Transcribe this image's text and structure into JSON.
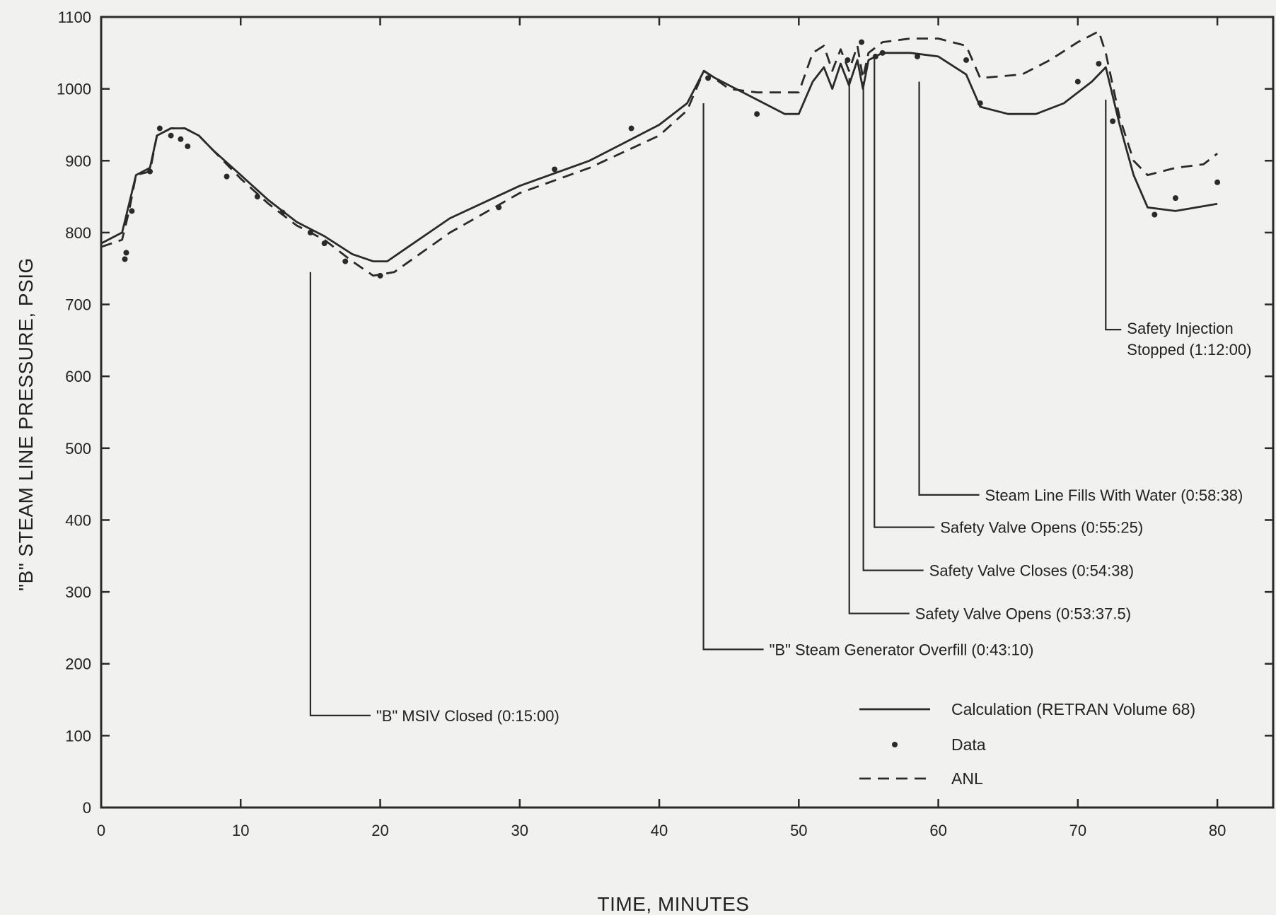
{
  "chart_data": {
    "type": "line",
    "title": "",
    "xlabel": "TIME, MINUTES",
    "ylabel": "\"B\" STEAM LINE PRESSURE, PSIG",
    "xlim": [
      0,
      84
    ],
    "ylim": [
      0,
      1100
    ],
    "xticks": [
      0,
      10,
      20,
      30,
      40,
      50,
      60,
      70,
      80
    ],
    "yticks": [
      0,
      100,
      200,
      300,
      400,
      500,
      600,
      700,
      800,
      900,
      1000,
      1100
    ],
    "grid": false,
    "legend": "bottom-right",
    "series": [
      {
        "name": "Calculation (RETRAN Volume 68)",
        "style": "solid",
        "points": [
          [
            0,
            785
          ],
          [
            1.5,
            800
          ],
          [
            2,
            840
          ],
          [
            2.5,
            880
          ],
          [
            3.5,
            890
          ],
          [
            4,
            935
          ],
          [
            5,
            945
          ],
          [
            6,
            945
          ],
          [
            7,
            935
          ],
          [
            8,
            915
          ],
          [
            10,
            880
          ],
          [
            12,
            845
          ],
          [
            14,
            815
          ],
          [
            16,
            795
          ],
          [
            18,
            770
          ],
          [
            19.5,
            760
          ],
          [
            20.5,
            760
          ],
          [
            22,
            780
          ],
          [
            25,
            820
          ],
          [
            30,
            865
          ],
          [
            35,
            900
          ],
          [
            40,
            950
          ],
          [
            42,
            980
          ],
          [
            43.2,
            1025
          ],
          [
            44,
            1015
          ],
          [
            45,
            1005
          ],
          [
            47,
            985
          ],
          [
            49,
            965
          ],
          [
            50,
            965
          ],
          [
            51,
            1010
          ],
          [
            51.8,
            1030
          ],
          [
            52.4,
            1000
          ],
          [
            53,
            1035
          ],
          [
            53.6,
            1005
          ],
          [
            54.2,
            1040
          ],
          [
            54.6,
            1000
          ],
          [
            55,
            1040
          ],
          [
            56,
            1050
          ],
          [
            58,
            1050
          ],
          [
            60,
            1045
          ],
          [
            62,
            1020
          ],
          [
            63,
            975
          ],
          [
            65,
            965
          ],
          [
            67,
            965
          ],
          [
            69,
            980
          ],
          [
            71,
            1010
          ],
          [
            72,
            1030
          ],
          [
            73,
            950
          ],
          [
            74,
            880
          ],
          [
            75,
            835
          ],
          [
            77,
            830
          ],
          [
            80,
            840
          ]
        ]
      },
      {
        "name": "ANL",
        "style": "dashed",
        "points": [
          [
            0,
            780
          ],
          [
            1.5,
            790
          ],
          [
            2,
            830
          ],
          [
            2.5,
            880
          ],
          [
            3.5,
            885
          ],
          [
            4,
            935
          ],
          [
            5,
            945
          ],
          [
            6,
            945
          ],
          [
            7,
            935
          ],
          [
            8,
            915
          ],
          [
            10,
            875
          ],
          [
            12,
            840
          ],
          [
            14,
            810
          ],
          [
            16,
            790
          ],
          [
            18,
            760
          ],
          [
            19.5,
            740
          ],
          [
            21,
            745
          ],
          [
            25,
            800
          ],
          [
            30,
            855
          ],
          [
            35,
            890
          ],
          [
            40,
            935
          ],
          [
            42,
            970
          ],
          [
            43.2,
            1025
          ],
          [
            45,
            1000
          ],
          [
            47,
            995
          ],
          [
            50,
            995
          ],
          [
            51,
            1050
          ],
          [
            51.8,
            1060
          ],
          [
            52.4,
            1025
          ],
          [
            53,
            1055
          ],
          [
            53.6,
            1025
          ],
          [
            54.2,
            1060
          ],
          [
            54.6,
            1015
          ],
          [
            55,
            1050
          ],
          [
            56,
            1065
          ],
          [
            58,
            1070
          ],
          [
            60,
            1070
          ],
          [
            62,
            1060
          ],
          [
            63,
            1015
          ],
          [
            66,
            1020
          ],
          [
            68,
            1040
          ],
          [
            70,
            1065
          ],
          [
            71.5,
            1080
          ],
          [
            72,
            1050
          ],
          [
            73,
            960
          ],
          [
            74,
            900
          ],
          [
            75,
            880
          ],
          [
            77,
            890
          ],
          [
            79,
            895
          ],
          [
            80,
            910
          ]
        ]
      },
      {
        "name": "Data",
        "style": "points",
        "points": [
          [
            1.7,
            763
          ],
          [
            1.8,
            772
          ],
          [
            2.2,
            830
          ],
          [
            3.5,
            885
          ],
          [
            4.2,
            945
          ],
          [
            5,
            935
          ],
          [
            5.7,
            930
          ],
          [
            6.2,
            920
          ],
          [
            9,
            878
          ],
          [
            11.2,
            850
          ],
          [
            13,
            828
          ],
          [
            15,
            800
          ],
          [
            16,
            785
          ],
          [
            17.5,
            760
          ],
          [
            20,
            740
          ],
          [
            28.5,
            835
          ],
          [
            32.5,
            888
          ],
          [
            38,
            945
          ],
          [
            43.5,
            1015
          ],
          [
            47,
            965
          ],
          [
            53.5,
            1040
          ],
          [
            54.5,
            1065
          ],
          [
            55.5,
            1045
          ],
          [
            56,
            1050
          ],
          [
            58.5,
            1045
          ],
          [
            62,
            1040
          ],
          [
            63,
            980
          ],
          [
            70,
            1010
          ],
          [
            71.5,
            1035
          ],
          [
            72.5,
            955
          ],
          [
            75.5,
            825
          ],
          [
            77,
            848
          ],
          [
            80,
            870
          ]
        ]
      }
    ],
    "annotations": [
      {
        "text": "\"B\" MSIV Closed (0:15:00)",
        "x": 15,
        "y_top": 745,
        "y_bottom": 128
      },
      {
        "text": "\"B\" Steam Generator Overfill (0:43:10)",
        "x": 43.17,
        "y_top": 980,
        "y_bottom": 220
      },
      {
        "text": "Safety Valve Opens (0:53:37.5)",
        "x": 53.62,
        "y_top": 1015,
        "y_bottom": 270
      },
      {
        "text": "Safety Valve Closes (0:54:38)",
        "x": 54.63,
        "y_top": 1010,
        "y_bottom": 330
      },
      {
        "text": "Safety Valve Opens (0:55:25)",
        "x": 55.42,
        "y_top": 1045,
        "y_bottom": 390
      },
      {
        "text": "Steam Line Fills With Water (0:58:38)",
        "x": 58.63,
        "y_top": 1010,
        "y_bottom": 435
      },
      {
        "text": "Safety Injection\nStopped (1:12:00)",
        "x": 72,
        "y_top": 985,
        "y_bottom": 665
      }
    ]
  }
}
